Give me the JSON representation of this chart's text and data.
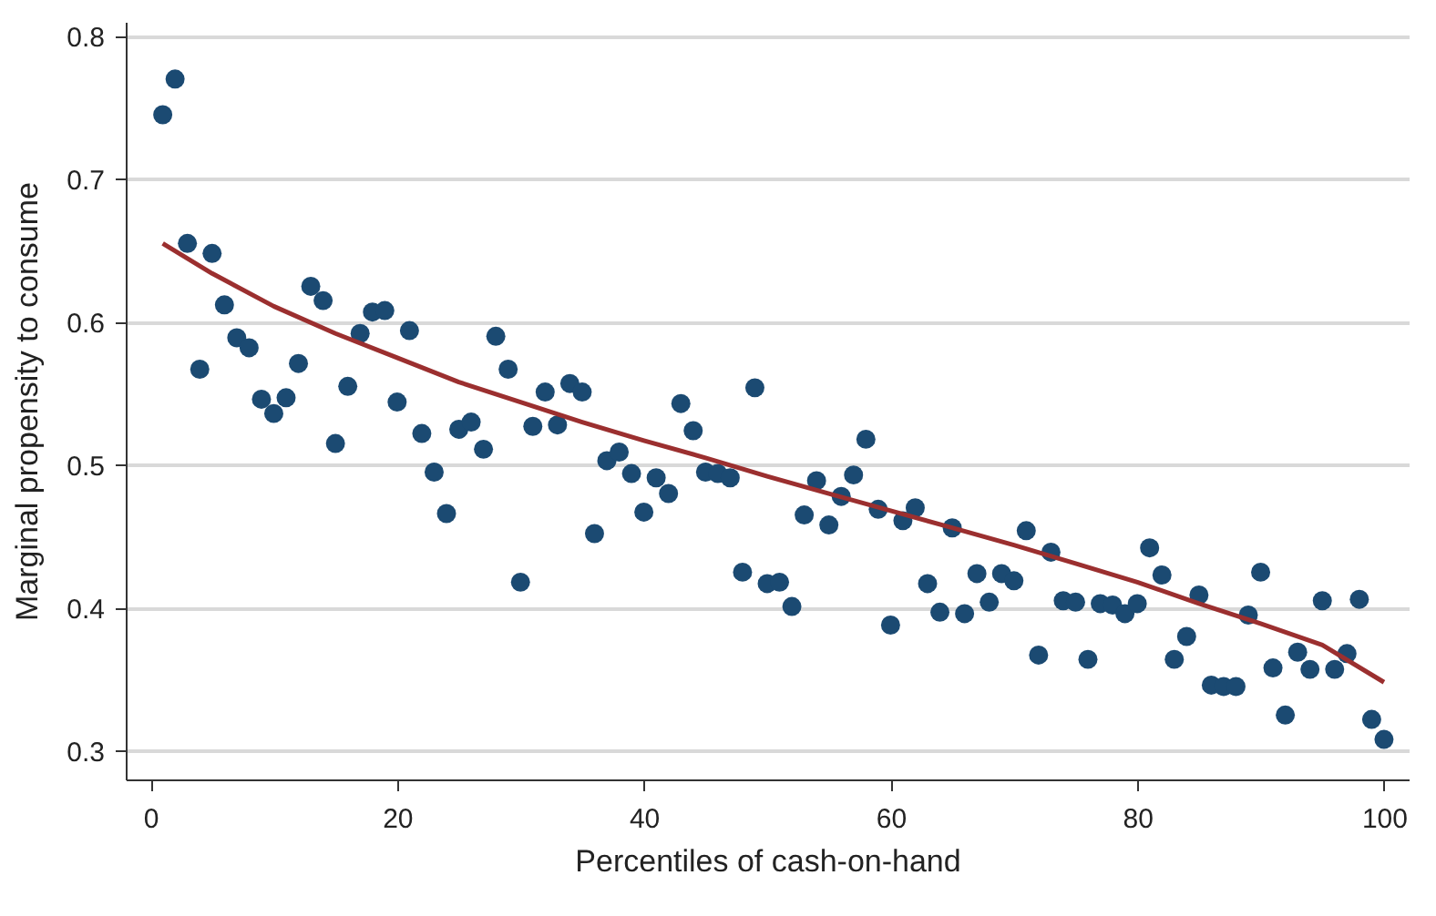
{
  "chart_data": {
    "type": "scatter",
    "xlabel": "Percentiles of cash-on-hand",
    "ylabel": "Marginal propensity to consume",
    "xlim": [
      -2,
      102
    ],
    "xticks": [
      0,
      20,
      40,
      60,
      80,
      100
    ],
    "ylim": [
      0.28,
      0.81
    ],
    "yticks": [
      0.3,
      0.4,
      0.5,
      0.6,
      0.7,
      0.8
    ],
    "grid": "y",
    "series": [
      {
        "color": "#1b4a72",
        "marker": "circle",
        "x": [
          1,
          2,
          3,
          4,
          5,
          6,
          7,
          8,
          9,
          10,
          11,
          12,
          13,
          14,
          15,
          16,
          17,
          18,
          19,
          20,
          21,
          22,
          23,
          24,
          25,
          26,
          27,
          28,
          29,
          30,
          31,
          32,
          33,
          34,
          35,
          36,
          37,
          38,
          39,
          40,
          41,
          42,
          43,
          44,
          45,
          46,
          47,
          48,
          49,
          50,
          51,
          52,
          53,
          54,
          55,
          56,
          57,
          58,
          59,
          60,
          61,
          62,
          63,
          64,
          65,
          66,
          67,
          68,
          69,
          70,
          71,
          72,
          73,
          74,
          75,
          76,
          77,
          78,
          79,
          80,
          81,
          82,
          83,
          84,
          85,
          86,
          87,
          88,
          89,
          90,
          91,
          92,
          93,
          94,
          95,
          96,
          97,
          98,
          99,
          100
        ],
        "values": [
          0.745,
          0.77,
          0.655,
          0.567,
          0.648,
          0.612,
          0.589,
          0.582,
          0.546,
          0.536,
          0.547,
          0.571,
          0.625,
          0.615,
          0.515,
          0.555,
          0.592,
          0.607,
          0.608,
          0.544,
          0.594,
          0.522,
          0.495,
          0.466,
          0.525,
          0.53,
          0.511,
          0.59,
          0.567,
          0.418,
          0.527,
          0.551,
          0.528,
          0.557,
          0.551,
          0.452,
          0.503,
          0.509,
          0.494,
          0.467,
          0.491,
          0.48,
          0.543,
          0.524,
          0.495,
          0.494,
          0.491,
          0.425,
          0.554,
          0.417,
          0.418,
          0.401,
          0.465,
          0.489,
          0.458,
          0.478,
          0.493,
          0.518,
          0.469,
          0.388,
          0.461,
          0.47,
          0.417,
          0.397,
          0.456,
          0.396,
          0.424,
          0.404,
          0.424,
          0.419,
          0.454,
          0.367,
          0.439,
          0.405,
          0.404,
          0.364,
          0.403,
          0.402,
          0.396,
          0.403,
          0.442,
          0.423,
          0.364,
          0.38,
          0.409,
          0.346,
          0.345,
          0.345,
          0.395,
          0.425,
          0.358,
          0.325,
          0.369,
          0.357,
          0.405,
          0.357,
          0.368,
          0.406,
          0.322,
          0.308
        ]
      },
      {
        "type": "line",
        "color": "#9b2f2f",
        "marker": "none",
        "x": [
          1,
          5,
          10,
          15,
          20,
          25,
          30,
          35,
          40,
          45,
          50,
          55,
          60,
          65,
          70,
          75,
          80,
          85,
          90,
          95,
          100
        ],
        "values": [
          0.655,
          0.634,
          0.611,
          0.592,
          0.575,
          0.558,
          0.544,
          0.53,
          0.517,
          0.505,
          0.492,
          0.48,
          0.468,
          0.456,
          0.444,
          0.431,
          0.418,
          0.403,
          0.389,
          0.374,
          0.348
        ]
      }
    ]
  }
}
